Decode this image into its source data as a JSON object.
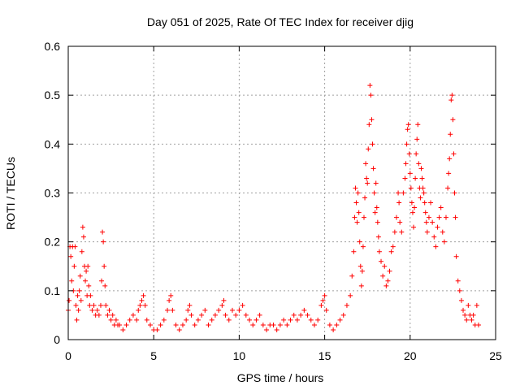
{
  "chart_data": {
    "type": "scatter",
    "title": "Day 051 of 2025, Rate Of TEC Index for receiver djig",
    "xlabel": "GPS time / hours",
    "ylabel": "ROTI / TECUs",
    "xlim": [
      0,
      25
    ],
    "ylim": [
      0,
      0.6
    ],
    "xticks": [
      0,
      5,
      10,
      15,
      20,
      25
    ],
    "xtick_labels": [
      "0",
      "5",
      "10",
      "15",
      "20",
      "25"
    ],
    "yticks": [
      0,
      0.1,
      0.2,
      0.3,
      0.4,
      0.5,
      0.6
    ],
    "ytick_labels": [
      "0",
      "0.1",
      "0.2",
      "0.3",
      "0.4",
      "0.5",
      "0.6"
    ],
    "grid": true,
    "marker": "+",
    "series": [
      {
        "name": "ROTI",
        "color": "#ff0000",
        "points": [
          [
            0.0,
            0.06
          ],
          [
            0.05,
            0.08
          ],
          [
            0.1,
            0.19
          ],
          [
            0.15,
            0.17
          ],
          [
            0.2,
            0.12
          ],
          [
            0.25,
            0.19
          ],
          [
            0.3,
            0.1
          ],
          [
            0.35,
            0.15
          ],
          [
            0.4,
            0.19
          ],
          [
            0.45,
            0.07
          ],
          [
            0.5,
            0.04
          ],
          [
            0.55,
            0.09
          ],
          [
            0.6,
            0.06
          ],
          [
            0.65,
            0.1
          ],
          [
            0.7,
            0.13
          ],
          [
            0.75,
            0.08
          ],
          [
            0.8,
            0.18
          ],
          [
            0.85,
            0.23
          ],
          [
            0.9,
            0.21
          ],
          [
            0.95,
            0.15
          ],
          [
            1.0,
            0.12
          ],
          [
            1.05,
            0.14
          ],
          [
            1.1,
            0.09
          ],
          [
            1.15,
            0.15
          ],
          [
            1.2,
            0.11
          ],
          [
            1.25,
            0.07
          ],
          [
            1.3,
            0.09
          ],
          [
            1.4,
            0.06
          ],
          [
            1.5,
            0.07
          ],
          [
            1.6,
            0.05
          ],
          [
            1.7,
            0.06
          ],
          [
            1.8,
            0.05
          ],
          [
            1.9,
            0.07
          ],
          [
            1.95,
            0.12
          ],
          [
            2.0,
            0.22
          ],
          [
            2.05,
            0.2
          ],
          [
            2.1,
            0.15
          ],
          [
            2.15,
            0.11
          ],
          [
            2.2,
            0.07
          ],
          [
            2.3,
            0.05
          ],
          [
            2.4,
            0.06
          ],
          [
            2.5,
            0.04
          ],
          [
            2.6,
            0.05
          ],
          [
            2.7,
            0.03
          ],
          [
            2.8,
            0.04
          ],
          [
            2.9,
            0.03
          ],
          [
            3.0,
            0.03
          ],
          [
            3.2,
            0.02
          ],
          [
            3.4,
            0.03
          ],
          [
            3.6,
            0.04
          ],
          [
            3.8,
            0.05
          ],
          [
            4.0,
            0.04
          ],
          [
            4.1,
            0.06
          ],
          [
            4.2,
            0.07
          ],
          [
            4.3,
            0.08
          ],
          [
            4.4,
            0.09
          ],
          [
            4.5,
            0.07
          ],
          [
            4.6,
            0.04
          ],
          [
            4.8,
            0.03
          ],
          [
            5.0,
            0.02
          ],
          [
            5.2,
            0.02
          ],
          [
            5.4,
            0.03
          ],
          [
            5.6,
            0.04
          ],
          [
            5.8,
            0.06
          ],
          [
            5.9,
            0.08
          ],
          [
            6.0,
            0.09
          ],
          [
            6.1,
            0.06
          ],
          [
            6.3,
            0.03
          ],
          [
            6.5,
            0.02
          ],
          [
            6.7,
            0.03
          ],
          [
            6.9,
            0.04
          ],
          [
            7.0,
            0.06
          ],
          [
            7.1,
            0.07
          ],
          [
            7.2,
            0.05
          ],
          [
            7.4,
            0.03
          ],
          [
            7.6,
            0.04
          ],
          [
            7.8,
            0.05
          ],
          [
            8.0,
            0.06
          ],
          [
            8.2,
            0.03
          ],
          [
            8.4,
            0.04
          ],
          [
            8.6,
            0.05
          ],
          [
            8.8,
            0.06
          ],
          [
            9.0,
            0.07
          ],
          [
            9.1,
            0.08
          ],
          [
            9.2,
            0.05
          ],
          [
            9.4,
            0.04
          ],
          [
            9.6,
            0.06
          ],
          [
            9.8,
            0.05
          ],
          [
            10.0,
            0.06
          ],
          [
            10.2,
            0.07
          ],
          [
            10.4,
            0.05
          ],
          [
            10.6,
            0.04
          ],
          [
            10.8,
            0.03
          ],
          [
            11.0,
            0.04
          ],
          [
            11.2,
            0.05
          ],
          [
            11.4,
            0.03
          ],
          [
            11.6,
            0.02
          ],
          [
            11.8,
            0.03
          ],
          [
            12.0,
            0.03
          ],
          [
            12.2,
            0.02
          ],
          [
            12.4,
            0.03
          ],
          [
            12.6,
            0.04
          ],
          [
            12.8,
            0.03
          ],
          [
            13.0,
            0.04
          ],
          [
            13.2,
            0.05
          ],
          [
            13.4,
            0.04
          ],
          [
            13.6,
            0.05
          ],
          [
            13.8,
            0.06
          ],
          [
            14.0,
            0.05
          ],
          [
            14.2,
            0.04
          ],
          [
            14.4,
            0.03
          ],
          [
            14.6,
            0.04
          ],
          [
            14.8,
            0.07
          ],
          [
            14.9,
            0.08
          ],
          [
            15.0,
            0.09
          ],
          [
            15.1,
            0.06
          ],
          [
            15.3,
            0.03
          ],
          [
            15.5,
            0.02
          ],
          [
            15.7,
            0.03
          ],
          [
            15.9,
            0.04
          ],
          [
            16.1,
            0.05
          ],
          [
            16.3,
            0.07
          ],
          [
            16.5,
            0.09
          ],
          [
            16.6,
            0.13
          ],
          [
            16.7,
            0.18
          ],
          [
            16.75,
            0.25
          ],
          [
            16.8,
            0.31
          ],
          [
            16.85,
            0.28
          ],
          [
            16.9,
            0.24
          ],
          [
            16.95,
            0.3
          ],
          [
            17.0,
            0.26
          ],
          [
            17.05,
            0.2
          ],
          [
            17.1,
            0.15
          ],
          [
            17.15,
            0.11
          ],
          [
            17.2,
            0.14
          ],
          [
            17.25,
            0.19
          ],
          [
            17.3,
            0.25
          ],
          [
            17.35,
            0.29
          ],
          [
            17.4,
            0.36
          ],
          [
            17.45,
            0.33
          ],
          [
            17.5,
            0.32
          ],
          [
            17.55,
            0.39
          ],
          [
            17.6,
            0.44
          ],
          [
            17.65,
            0.52
          ],
          [
            17.7,
            0.5
          ],
          [
            17.75,
            0.45
          ],
          [
            17.8,
            0.4
          ],
          [
            17.85,
            0.35
          ],
          [
            17.9,
            0.3
          ],
          [
            17.95,
            0.26
          ],
          [
            18.0,
            0.32
          ],
          [
            18.05,
            0.27
          ],
          [
            18.1,
            0.24
          ],
          [
            18.15,
            0.21
          ],
          [
            18.2,
            0.18
          ],
          [
            18.3,
            0.16
          ],
          [
            18.4,
            0.13
          ],
          [
            18.5,
            0.15
          ],
          [
            18.6,
            0.11
          ],
          [
            18.7,
            0.12
          ],
          [
            18.8,
            0.14
          ],
          [
            18.9,
            0.18
          ],
          [
            19.0,
            0.19
          ],
          [
            19.1,
            0.22
          ],
          [
            19.2,
            0.25
          ],
          [
            19.3,
            0.3
          ],
          [
            19.35,
            0.28
          ],
          [
            19.4,
            0.24
          ],
          [
            19.5,
            0.22
          ],
          [
            19.6,
            0.3
          ],
          [
            19.7,
            0.33
          ],
          [
            19.75,
            0.36
          ],
          [
            19.8,
            0.4
          ],
          [
            19.85,
            0.43
          ],
          [
            19.9,
            0.44
          ],
          [
            19.95,
            0.38
          ],
          [
            20.0,
            0.34
          ],
          [
            20.05,
            0.31
          ],
          [
            20.1,
            0.28
          ],
          [
            20.15,
            0.26
          ],
          [
            20.2,
            0.23
          ],
          [
            20.25,
            0.27
          ],
          [
            20.3,
            0.33
          ],
          [
            20.35,
            0.38
          ],
          [
            20.4,
            0.41
          ],
          [
            20.45,
            0.44
          ],
          [
            20.5,
            0.36
          ],
          [
            20.55,
            0.31
          ],
          [
            20.6,
            0.29
          ],
          [
            20.65,
            0.35
          ],
          [
            20.7,
            0.33
          ],
          [
            20.75,
            0.31
          ],
          [
            20.8,
            0.3
          ],
          [
            20.85,
            0.28
          ],
          [
            20.9,
            0.26
          ],
          [
            20.95,
            0.24
          ],
          [
            21.0,
            0.22
          ],
          [
            21.1,
            0.25
          ],
          [
            21.2,
            0.28
          ],
          [
            21.3,
            0.24
          ],
          [
            21.4,
            0.21
          ],
          [
            21.5,
            0.19
          ],
          [
            21.6,
            0.23
          ],
          [
            21.7,
            0.25
          ],
          [
            21.8,
            0.27
          ],
          [
            21.9,
            0.22
          ],
          [
            22.0,
            0.2
          ],
          [
            22.1,
            0.25
          ],
          [
            22.2,
            0.31
          ],
          [
            22.25,
            0.34
          ],
          [
            22.3,
            0.37
          ],
          [
            22.35,
            0.42
          ],
          [
            22.4,
            0.49
          ],
          [
            22.45,
            0.5
          ],
          [
            22.5,
            0.45
          ],
          [
            22.55,
            0.38
          ],
          [
            22.6,
            0.3
          ],
          [
            22.65,
            0.25
          ],
          [
            22.7,
            0.17
          ],
          [
            22.8,
            0.12
          ],
          [
            22.9,
            0.1
          ],
          [
            23.0,
            0.08
          ],
          [
            23.1,
            0.06
          ],
          [
            23.2,
            0.05
          ],
          [
            23.3,
            0.04
          ],
          [
            23.4,
            0.07
          ],
          [
            23.5,
            0.05
          ],
          [
            23.6,
            0.04
          ],
          [
            23.7,
            0.05
          ],
          [
            23.8,
            0.03
          ],
          [
            23.9,
            0.07
          ],
          [
            24.0,
            0.03
          ]
        ]
      }
    ]
  }
}
